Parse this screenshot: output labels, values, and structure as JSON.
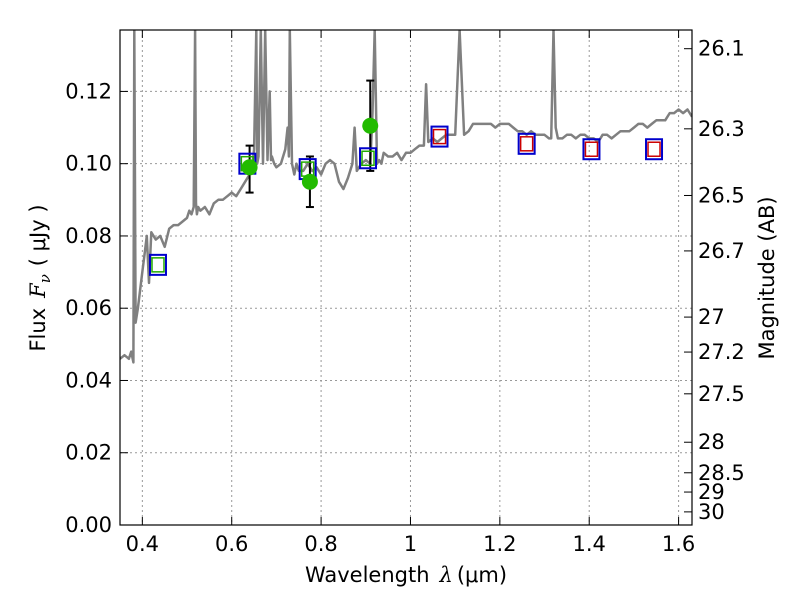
{
  "chart_data": {
    "type": "scatter",
    "xlabel": "Wavelength λ (μm)",
    "xlabel_prefix": "Wavelength",
    "xlabel_symbol": "λ",
    "xlabel_unit": "(μm)",
    "ylabel_prefix": "Flux",
    "ylabel_symbol": "F",
    "ylabel_subscript": "ν",
    "ylabel_unit": "( μJy )",
    "right_ylabel": "Magnitude (AB)",
    "xlim": [
      0.35,
      1.63
    ],
    "ylim": [
      0.0,
      0.137
    ],
    "grid": true,
    "x_ticks": [
      0.4,
      0.6,
      0.8,
      1.0,
      1.2,
      1.4,
      1.6
    ],
    "x_tick_labels": [
      "0.4",
      "0.6",
      "0.8",
      "1",
      "1.2",
      "1.4",
      "1.6"
    ],
    "y_ticks": [
      0.0,
      0.02,
      0.04,
      0.06,
      0.08,
      0.1,
      0.12
    ],
    "y_tick_labels": [
      "0.00",
      "0.02",
      "0.04",
      "0.06",
      "0.08",
      "0.10",
      "0.12"
    ],
    "right_ticks": [
      {
        "mag": 26.1,
        "label": "26.1"
      },
      {
        "mag": 26.3,
        "label": "26.3"
      },
      {
        "mag": 26.5,
        "label": "26.5"
      },
      {
        "mag": 26.7,
        "label": "26.7"
      },
      {
        "mag": 27,
        "label": "27"
      },
      {
        "mag": 27.2,
        "label": "27.2"
      },
      {
        "mag": 27.5,
        "label": "27.5"
      },
      {
        "mag": 28,
        "label": "28"
      },
      {
        "mag": 28.5,
        "label": "28.5"
      },
      {
        "mag": 29,
        "label": "29"
      },
      {
        "mag": 30,
        "label": "30"
      }
    ],
    "colors": {
      "spectrum": "#808080",
      "observed": "#22bb00",
      "model_box": "#0000cc",
      "inner_green": "#22aa00",
      "inner_red": "#cc0000",
      "errorbar": "#000000",
      "grid": "#999999"
    },
    "series": [
      {
        "name": "model spectrum",
        "kind": "line",
        "x": [
          0.35,
          0.36,
          0.37,
          0.375,
          0.38,
          0.382,
          0.385,
          0.39,
          0.395,
          0.4,
          0.405,
          0.41,
          0.415,
          0.42,
          0.43,
          0.44,
          0.45,
          0.46,
          0.47,
          0.48,
          0.49,
          0.5,
          0.505,
          0.51,
          0.515,
          0.518,
          0.52,
          0.522,
          0.525,
          0.53,
          0.54,
          0.55,
          0.56,
          0.57,
          0.58,
          0.59,
          0.6,
          0.61,
          0.62,
          0.63,
          0.64,
          0.645,
          0.65,
          0.655,
          0.657,
          0.66,
          0.665,
          0.67,
          0.675,
          0.68,
          0.685,
          0.688,
          0.69,
          0.695,
          0.7,
          0.71,
          0.72,
          0.725,
          0.728,
          0.73,
          0.735,
          0.74,
          0.745,
          0.75,
          0.76,
          0.77,
          0.78,
          0.79,
          0.8,
          0.81,
          0.82,
          0.83,
          0.84,
          0.85,
          0.86,
          0.87,
          0.875,
          0.88,
          0.89,
          0.9,
          0.91,
          0.915,
          0.92,
          0.925,
          0.93,
          0.935,
          0.94,
          0.95,
          0.96,
          0.97,
          0.98,
          0.99,
          1.0,
          1.01,
          1.02,
          1.03,
          1.035,
          1.04,
          1.05,
          1.06,
          1.07,
          1.08,
          1.09,
          1.1,
          1.11,
          1.12,
          1.13,
          1.14,
          1.15,
          1.16,
          1.17,
          1.18,
          1.19,
          1.2,
          1.21,
          1.22,
          1.23,
          1.24,
          1.25,
          1.26,
          1.27,
          1.28,
          1.29,
          1.3,
          1.31,
          1.315,
          1.32,
          1.325,
          1.33,
          1.34,
          1.35,
          1.36,
          1.37,
          1.38,
          1.39,
          1.4,
          1.41,
          1.42,
          1.43,
          1.44,
          1.45,
          1.46,
          1.47,
          1.48,
          1.49,
          1.5,
          1.51,
          1.52,
          1.53,
          1.54,
          1.55,
          1.56,
          1.57,
          1.58,
          1.59,
          1.6,
          1.61,
          1.62,
          1.63
        ],
        "y": [
          0.046,
          0.047,
          0.046,
          0.048,
          0.045,
          0.137,
          0.056,
          0.06,
          0.065,
          0.07,
          0.075,
          0.08,
          0.067,
          0.081,
          0.079,
          0.08,
          0.077,
          0.082,
          0.083,
          0.083,
          0.084,
          0.085,
          0.087,
          0.086,
          0.088,
          0.137,
          0.089,
          0.086,
          0.088,
          0.087,
          0.088,
          0.086,
          0.089,
          0.09,
          0.09,
          0.091,
          0.092,
          0.091,
          0.093,
          0.095,
          0.097,
          0.098,
          0.104,
          0.137,
          0.1,
          0.102,
          0.137,
          0.1,
          0.137,
          0.101,
          0.12,
          0.101,
          0.102,
          0.1,
          0.099,
          0.1,
          0.104,
          0.11,
          0.102,
          0.137,
          0.1,
          0.097,
          0.1,
          0.098,
          0.098,
          0.1,
          0.098,
          0.099,
          0.097,
          0.1,
          0.101,
          0.1,
          0.095,
          0.093,
          0.096,
          0.1,
          0.11,
          0.098,
          0.1,
          0.101,
          0.1,
          0.114,
          0.137,
          0.1,
          0.101,
          0.1,
          0.103,
          0.102,
          0.102,
          0.103,
          0.101,
          0.103,
          0.103,
          0.104,
          0.105,
          0.105,
          0.122,
          0.106,
          0.107,
          0.106,
          0.107,
          0.108,
          0.108,
          0.108,
          0.137,
          0.108,
          0.109,
          0.111,
          0.111,
          0.111,
          0.111,
          0.111,
          0.11,
          0.111,
          0.111,
          0.111,
          0.11,
          0.109,
          0.109,
          0.108,
          0.109,
          0.108,
          0.108,
          0.108,
          0.107,
          0.107,
          0.137,
          0.11,
          0.107,
          0.107,
          0.108,
          0.108,
          0.107,
          0.108,
          0.108,
          0.107,
          0.107,
          0.106,
          0.108,
          0.108,
          0.107,
          0.108,
          0.109,
          0.109,
          0.109,
          0.11,
          0.111,
          0.111,
          0.11,
          0.111,
          0.112,
          0.112,
          0.112,
          0.114,
          0.114,
          0.115,
          0.114,
          0.115,
          0.113
        ]
      },
      {
        "name": "observed photometry",
        "kind": "errorbar",
        "points": [
          {
            "x": 0.64,
            "y": 0.099,
            "err_lo": 0.092,
            "err_hi": 0.105
          },
          {
            "x": 0.775,
            "y": 0.095,
            "err_lo": 0.088,
            "err_hi": 0.102
          },
          {
            "x": 0.91,
            "y": 0.1105,
            "err_lo": 0.098,
            "err_hi": 0.123
          }
        ]
      },
      {
        "name": "model band fluxes",
        "kind": "square",
        "points": [
          {
            "x": 0.435,
            "y": 0.072,
            "inner": "green"
          },
          {
            "x": 0.635,
            "y": 0.1,
            "inner": "green"
          },
          {
            "x": 0.77,
            "y": 0.0985,
            "inner": "green"
          },
          {
            "x": 0.905,
            "y": 0.1015,
            "inner": "green"
          },
          {
            "x": 1.065,
            "y": 0.1075,
            "inner": "red"
          },
          {
            "x": 1.26,
            "y": 0.1055,
            "inner": "red"
          },
          {
            "x": 1.405,
            "y": 0.104,
            "inner": "red"
          },
          {
            "x": 1.545,
            "y": 0.104,
            "inner": "red"
          }
        ]
      }
    ]
  }
}
